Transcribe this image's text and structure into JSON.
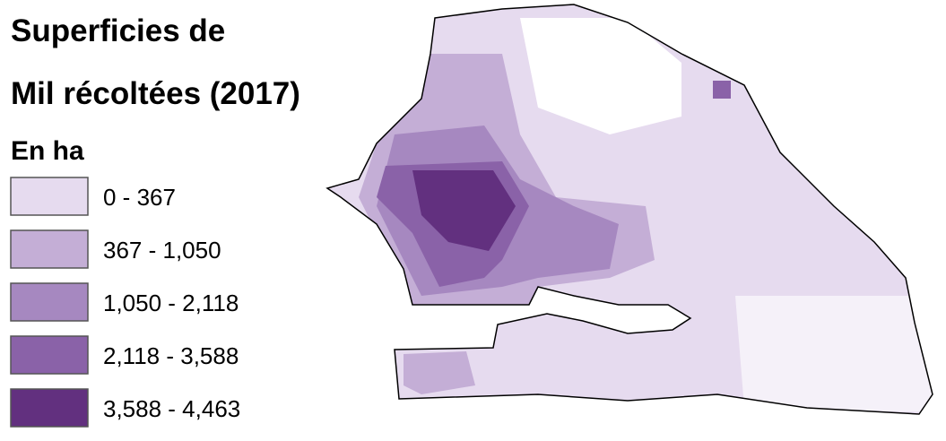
{
  "title": [
    "Superficies de",
    "Mil récoltées (2017)"
  ],
  "subtitle": "En ha",
  "legend": [
    {
      "label": "0 - 367",
      "color": "#e6dbef"
    },
    {
      "label": "367 - 1,050",
      "color": "#c4aed6"
    },
    {
      "label": "1,050 - 2,118",
      "color": "#a688c0"
    },
    {
      "label": "2,118 - 3,588",
      "color": "#8a62a8"
    },
    {
      "label": "3,588 - 4,463",
      "color": "#62307f"
    }
  ]
}
